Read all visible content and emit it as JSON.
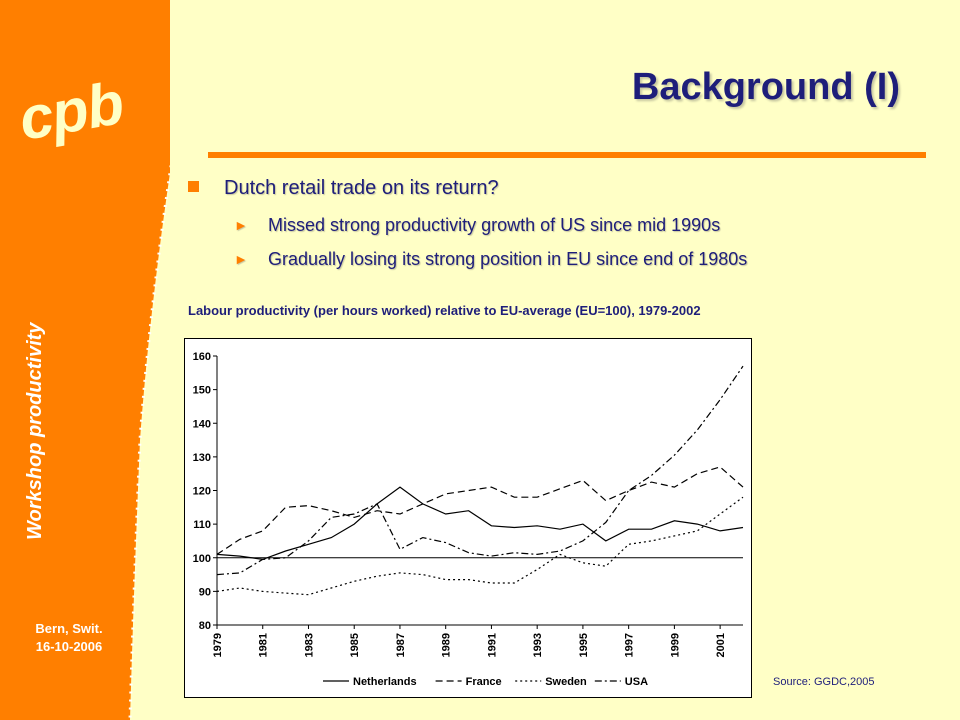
{
  "logo": {
    "text": "cpb"
  },
  "sidebar": {
    "vertical_label": "Workshop productivity",
    "location": "Bern, Swit.",
    "date": "16-10-2006"
  },
  "colors": {
    "orange": "#ff7f00",
    "background": "#ffffc6",
    "title": "#1e1e7a"
  },
  "slide": {
    "title": "Background (I)",
    "bullet_main": "Dutch retail trade on its return?",
    "sub_bullets": [
      "Missed strong productivity growth of US since mid 1990s",
      "Gradually losing its strong position in EU since end of 1980s"
    ],
    "chart_caption": "Labour productivity (per hours worked) relative to EU-average (EU=100), 1979-2002",
    "source": "Source: GGDC,2005"
  },
  "chart_data": {
    "type": "line",
    "x": [
      1979,
      1980,
      1981,
      1982,
      1983,
      1984,
      1985,
      1986,
      1987,
      1988,
      1989,
      1990,
      1991,
      1992,
      1993,
      1994,
      1995,
      1996,
      1997,
      1998,
      1999,
      2000,
      2001,
      2002
    ],
    "xticks": [
      "1979",
      "1981",
      "1983",
      "1985",
      "1987",
      "1989",
      "1991",
      "1993",
      "1995",
      "1997",
      "1999",
      "2001"
    ],
    "ylim": [
      80,
      160
    ],
    "yticks": [
      80,
      90,
      100,
      110,
      120,
      130,
      140,
      150,
      160
    ],
    "reference_line": 100,
    "legend_position": "bottom",
    "series": [
      {
        "name": "Netherlands",
        "style": "solid",
        "values": [
          101,
          100.5,
          99.5,
          102,
          104,
          106,
          110,
          116,
          121,
          116,
          113,
          114,
          109.5,
          109,
          109.5,
          108.5,
          110,
          105,
          108.5,
          108.5,
          111,
          110,
          108,
          109
        ]
      },
      {
        "name": "France",
        "style": "dash",
        "values": [
          101,
          105.5,
          108,
          115,
          115.5,
          114,
          112,
          114,
          113,
          116,
          119,
          120,
          121,
          118,
          118,
          120.5,
          123,
          117,
          120,
          122.5,
          121,
          125,
          127,
          121
        ]
      },
      {
        "name": "Sweden",
        "style": "dot",
        "values": [
          90,
          91,
          90,
          89.5,
          89,
          91,
          93,
          94.5,
          95.5,
          95,
          93.5,
          93.5,
          92.5,
          92.5,
          96.5,
          101,
          98.5,
          97.5,
          104,
          105,
          106.5,
          108,
          113,
          118
        ]
      },
      {
        "name": "USA",
        "style": "dashdot",
        "values": [
          95,
          95.5,
          99.5,
          100,
          105,
          112,
          113,
          116,
          102.5,
          106,
          104.5,
          101.5,
          100.5,
          101.5,
          101,
          102,
          105,
          110.5,
          120,
          124.5,
          130.5,
          138,
          147,
          157
        ]
      }
    ]
  }
}
